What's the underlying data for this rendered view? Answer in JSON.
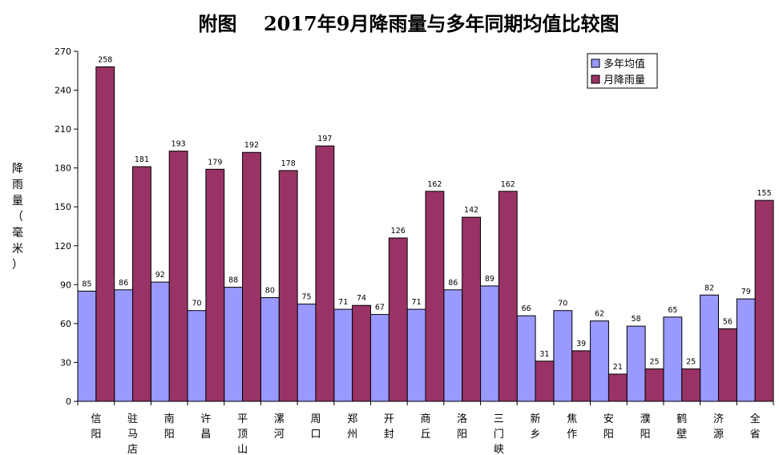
{
  "chart_data": {
    "type": "bar",
    "title": "附图    2017年9月降雨量与多年同期均值比较图",
    "ylabel": "降雨量（毫米）",
    "ylim": [
      0,
      270
    ],
    "yticks": [
      0,
      30,
      60,
      90,
      120,
      150,
      180,
      210,
      240,
      270
    ],
    "legend_position": "top-right",
    "grid": false,
    "categories": [
      "信阳",
      "驻马店",
      "南阳",
      "许昌",
      "平顶山",
      "漯河",
      "周口",
      "郑州",
      "开封",
      "商丘",
      "洛阳",
      "三门峡",
      "新乡",
      "焦作",
      "安阳",
      "濮阳",
      "鹤壁",
      "济源",
      "全省"
    ],
    "series": [
      {
        "name": "多年均值",
        "color": "#9999ff",
        "values": [
          85,
          86,
          92,
          70,
          88,
          80,
          75,
          71,
          67,
          71,
          86,
          89,
          66,
          70,
          62,
          58,
          65,
          82,
          79
        ]
      },
      {
        "name": "月降雨量",
        "color": "#993366",
        "values": [
          258,
          181,
          193,
          179,
          192,
          178,
          197,
          74,
          126,
          162,
          142,
          162,
          31,
          39,
          21,
          25,
          25,
          56,
          155
        ]
      }
    ]
  }
}
